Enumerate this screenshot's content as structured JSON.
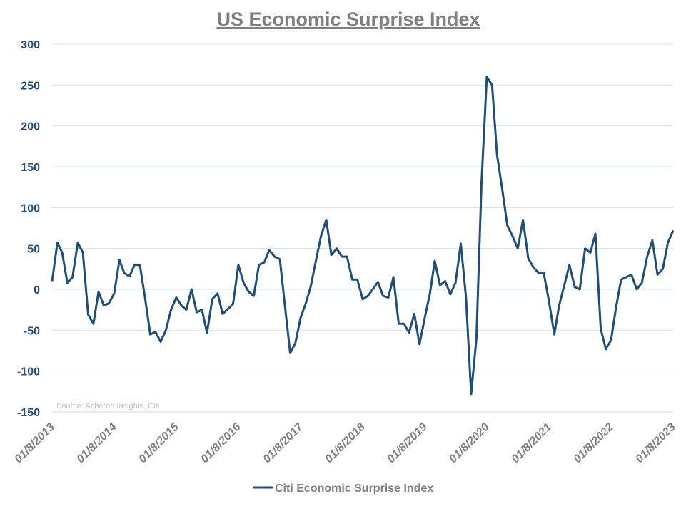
{
  "chart_data": {
    "type": "line",
    "title": "US Economic Surprise Index",
    "source": "Source: Acheron Insights, Citi",
    "xlabel": "",
    "ylabel": "",
    "ylim": [
      -150,
      300
    ],
    "yticks": [
      -150,
      -100,
      -50,
      0,
      50,
      100,
      150,
      200,
      250,
      300
    ],
    "xlim": [
      "2013-01-08",
      "2023-01-08"
    ],
    "xticks": [
      "2013-01-08",
      "2014-01-08",
      "2015-01-08",
      "2016-01-08",
      "2017-01-08",
      "2018-01-08",
      "2019-01-08",
      "2020-01-08",
      "2021-01-08",
      "2022-01-08",
      "2023-01-08"
    ],
    "xtick_labels": [
      "01/8/2013",
      "01/8/2014",
      "01/8/2015",
      "01/8/2016",
      "01/8/2017",
      "01/8/2018",
      "01/8/2019",
      "01/8/2020",
      "01/8/2021",
      "01/8/2022",
      "01/8/2023"
    ],
    "grid": "horizontal",
    "legend_position": "bottom",
    "colors": {
      "series": "#1F4E79",
      "grid": "#D6E3EF",
      "title": "#7F7F7F"
    },
    "series": [
      {
        "name": "Citi Economic Surprise Index",
        "dates": [
          "2013-01-08",
          "2013-02-08",
          "2013-03-08",
          "2013-04-08",
          "2013-05-08",
          "2013-06-08",
          "2013-07-08",
          "2013-08-08",
          "2013-09-08",
          "2013-10-08",
          "2013-11-08",
          "2013-12-08",
          "2014-01-08",
          "2014-02-08",
          "2014-03-08",
          "2014-04-08",
          "2014-05-08",
          "2014-06-08",
          "2014-07-08",
          "2014-08-08",
          "2014-09-08",
          "2014-10-08",
          "2014-11-08",
          "2014-12-08",
          "2015-01-08",
          "2015-02-08",
          "2015-03-08",
          "2015-04-08",
          "2015-05-08",
          "2015-06-08",
          "2015-07-08",
          "2015-08-08",
          "2015-09-08",
          "2015-10-08",
          "2015-11-08",
          "2015-12-08",
          "2016-01-08",
          "2016-02-08",
          "2016-03-08",
          "2016-04-08",
          "2016-05-08",
          "2016-06-08",
          "2016-07-08",
          "2016-08-08",
          "2016-09-08",
          "2016-10-08",
          "2016-11-08",
          "2016-12-08",
          "2017-01-08",
          "2017-02-08",
          "2017-03-08",
          "2017-04-08",
          "2017-05-08",
          "2017-06-08",
          "2017-07-08",
          "2017-08-08",
          "2017-09-08",
          "2017-10-08",
          "2017-11-08",
          "2017-12-08",
          "2018-01-08",
          "2018-02-08",
          "2018-03-08",
          "2018-04-08",
          "2018-05-08",
          "2018-06-08",
          "2018-07-08",
          "2018-08-08",
          "2018-09-08",
          "2018-10-08",
          "2018-11-08",
          "2018-12-08",
          "2019-01-08",
          "2019-02-08",
          "2019-03-08",
          "2019-04-08",
          "2019-05-08",
          "2019-06-08",
          "2019-07-08",
          "2019-08-08",
          "2019-09-08",
          "2019-10-08",
          "2019-11-08",
          "2019-12-08",
          "2020-01-08",
          "2020-02-08",
          "2020-03-08",
          "2020-04-08",
          "2020-05-08",
          "2020-06-08",
          "2020-07-08",
          "2020-08-08",
          "2020-09-08",
          "2020-10-08",
          "2020-11-08",
          "2020-12-08",
          "2021-01-08",
          "2021-02-08",
          "2021-03-08",
          "2021-04-08",
          "2021-05-08",
          "2021-06-08",
          "2021-07-08",
          "2021-08-08",
          "2021-09-08",
          "2021-10-08",
          "2021-11-08",
          "2021-12-08",
          "2022-01-08",
          "2022-02-08",
          "2022-03-08",
          "2022-04-08",
          "2022-05-08",
          "2022-06-08",
          "2022-07-08",
          "2022-08-08",
          "2022-09-08",
          "2022-10-08",
          "2022-11-08",
          "2022-12-08",
          "2023-01-08"
        ],
        "values": [
          10,
          57,
          45,
          8,
          15,
          57,
          45,
          -31,
          -42,
          -3,
          -20,
          -17,
          -5,
          36,
          20,
          16,
          30,
          30,
          -10,
          -55,
          -52,
          -64,
          -50,
          -25,
          -10,
          -20,
          -25,
          0,
          -28,
          -25,
          -53,
          -12,
          -5,
          -30,
          -24,
          -18,
          30,
          8,
          -3,
          -8,
          30,
          33,
          48,
          40,
          37,
          -20,
          -78,
          -66,
          -35,
          -17,
          3,
          35,
          65,
          85,
          42,
          50,
          40,
          40,
          12,
          12,
          -12,
          -8,
          0,
          9,
          -8,
          -10,
          15,
          -42,
          -42,
          -53,
          -30,
          -67,
          -35,
          -5,
          35,
          5,
          10,
          -6,
          8,
          56,
          -10,
          -128,
          -60,
          130,
          260,
          250,
          165,
          122,
          78,
          65,
          50,
          85,
          38,
          27,
          20,
          20,
          -15,
          -55,
          -20,
          5,
          30,
          3,
          0,
          50,
          45,
          68,
          -48,
          -73,
          -62,
          -20,
          12,
          15,
          18,
          0,
          8,
          40,
          60,
          18,
          25,
          57,
          72
        ]
      }
    ]
  }
}
